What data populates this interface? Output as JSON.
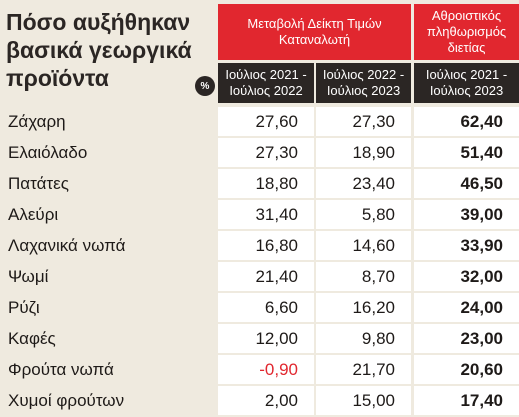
{
  "title": {
    "lines": [
      "Πόσο αυξήθηκαν",
      "βασικά γεωργικά",
      "προϊόντα"
    ]
  },
  "header": {
    "group_1": "Μεταβολή Δείκτη Τιμών Καταναλωτή",
    "group_2": "Αθροιστικός πληθωρισμός διετίας",
    "badge": "%",
    "columns": [
      "Ιούλιος 2021 - Ιούλιος 2022",
      "Ιούλιος 2022 - Ιούλιος 2023",
      "Ιούλιος 2021 - Ιούλιος 2023"
    ]
  },
  "table": {
    "rows": [
      [
        "Ζάχαρη",
        "27,60",
        "27,30",
        "62,40"
      ],
      [
        "Ελαιόλαδο",
        "27,30",
        "18,90",
        "51,40"
      ],
      [
        "Πατάτες",
        "18,80",
        "23,40",
        "46,50"
      ],
      [
        "Αλεύρι",
        "31,40",
        "5,80",
        "39,00"
      ],
      [
        "Λαχανικά νωπά",
        "16,80",
        "14,60",
        "33,90"
      ],
      [
        "Ψωμί",
        "21,40",
        "8,70",
        "32,00"
      ],
      [
        "Ρύζι",
        "6,60",
        "16,20",
        "24,00"
      ],
      [
        "Καφές",
        "12,00",
        "9,80",
        "23,00"
      ],
      [
        "Φρούτα νωπά",
        "-0,90",
        "21,70",
        "20,60"
      ],
      [
        "Χυμοί φρούτων",
        "2,00",
        "15,00",
        "17,40"
      ]
    ]
  }
}
